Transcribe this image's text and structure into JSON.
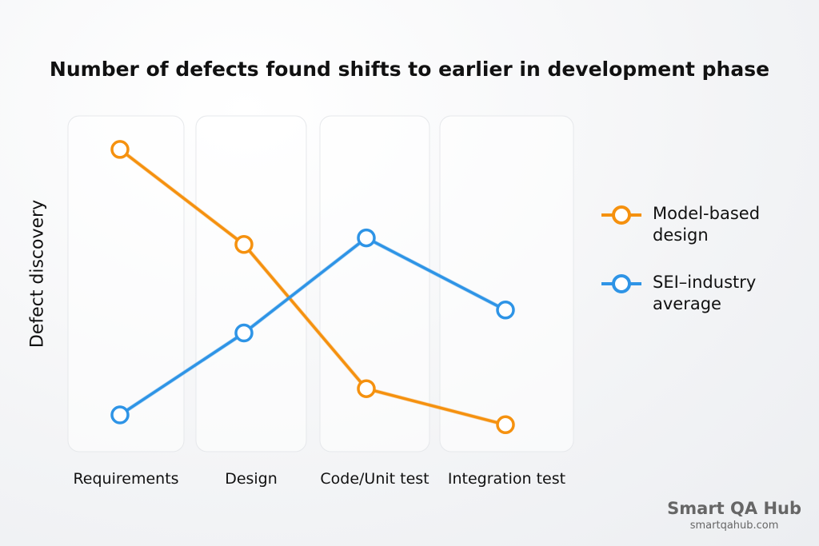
{
  "chart_data": {
    "type": "line",
    "title": "Number of defects found shifts to earlier in development phase",
    "xlabel": "",
    "ylabel": "Defect discovery",
    "categories": [
      "Requirements",
      "Design",
      "Code/Unit test",
      "Integration test"
    ],
    "ylim": [
      0,
      100
    ],
    "grid": false,
    "legend_position": "right",
    "series": [
      {
        "name": "Model-based design",
        "values": [
          91,
          62,
          18,
          7
        ],
        "color": "#f5910f"
      },
      {
        "name": "SEI–industry average",
        "values": [
          10,
          35,
          64,
          42
        ],
        "color": "#2e94e6"
      }
    ]
  },
  "brand": {
    "name": "Smart QA Hub",
    "url": "smartqahub.com"
  }
}
